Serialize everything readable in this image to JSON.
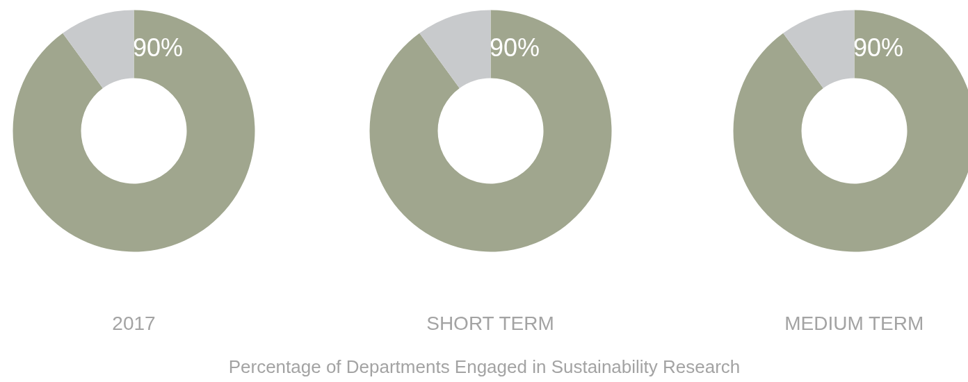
{
  "chart_data": [
    {
      "type": "donut",
      "title": "2017",
      "categories": [
        null,
        null
      ],
      "values": [
        90,
        10
      ],
      "colors": [
        "#a0a68e",
        "#c8cacc"
      ],
      "value_labels": [
        "90%",
        null
      ]
    },
    {
      "type": "donut",
      "title": "SHORT TERM",
      "categories": [
        null,
        null
      ],
      "values": [
        90,
        10
      ],
      "colors": [
        "#a0a68e",
        "#c8cacc"
      ],
      "value_labels": [
        "90%",
        null
      ],
      "annotations": [
        "Percentage of Departments Engaged in Sustainability Research"
      ]
    },
    {
      "type": "donut",
      "title": "MEDIUM TERM",
      "categories": [
        null,
        null
      ],
      "values": [
        90,
        10
      ],
      "colors": [
        "#a0a68e",
        "#c8cacc"
      ],
      "value_labels": [
        "90%",
        null
      ]
    }
  ]
}
